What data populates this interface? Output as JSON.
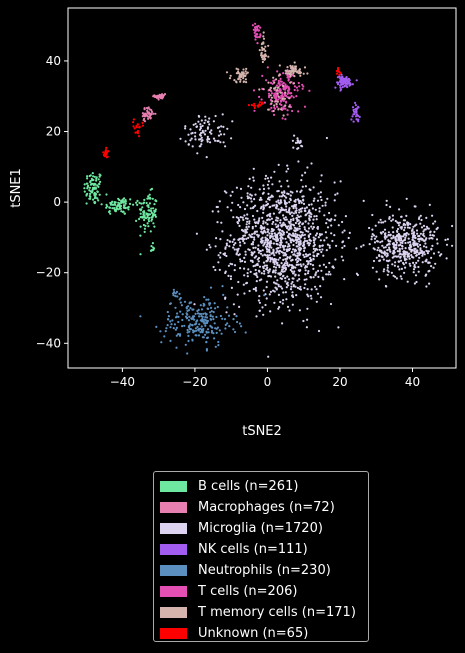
{
  "chart_data": {
    "type": "scatter",
    "title": "",
    "xlabel": "tSNE2",
    "ylabel": "tSNE1",
    "xlim": [
      -55,
      52
    ],
    "ylim": [
      -47,
      55
    ],
    "xticks": [
      -40,
      -20,
      0,
      20,
      40
    ],
    "yticks": [
      -40,
      -20,
      0,
      20,
      40
    ],
    "background": "#000000",
    "grid": false,
    "legend_position": "below",
    "series": [
      {
        "name": "B cells (n=261)",
        "color": "#6ee8a0",
        "count": 261,
        "clusters": [
          {
            "cx": -48,
            "cy": 4,
            "sx": 1.3,
            "sy": 2.5,
            "f": 0.3
          },
          {
            "cx": -41,
            "cy": -1,
            "sx": 2.2,
            "sy": 1.3,
            "f": 0.3
          },
          {
            "cx": -33,
            "cy": -3,
            "sx": 1.3,
            "sy": 2.8,
            "f": 0.37
          },
          {
            "cx": -32,
            "cy": -13,
            "sx": 0.3,
            "sy": 0.6,
            "f": 0.03
          }
        ]
      },
      {
        "name": "Macrophages (n=72)",
        "color": "#e77fb0",
        "count": 72,
        "clusters": [
          {
            "cx": -29.5,
            "cy": 30,
            "sx": 0.8,
            "sy": 0.6,
            "f": 0.45
          },
          {
            "cx": -33,
            "cy": 25,
            "sx": 1.0,
            "sy": 0.9,
            "f": 0.55
          }
        ]
      },
      {
        "name": "Microglia (n=1720)",
        "color": "#dcd3f0",
        "count": 1720,
        "clusters": [
          {
            "cx": 4,
            "cy": -11,
            "sx": 7.5,
            "sy": 8.5,
            "f": 0.68
          },
          {
            "cx": 38,
            "cy": -12,
            "sx": 4.5,
            "sy": 4.5,
            "f": 0.26
          },
          {
            "cx": -17,
            "cy": 20,
            "sx": 3.0,
            "sy": 2.5,
            "f": 0.05
          },
          {
            "cx": 8.5,
            "cy": 17,
            "sx": 0.9,
            "sy": 1.0,
            "f": 0.01
          }
        ]
      },
      {
        "name": "NK cells (n=111)",
        "color": "#a35cf0",
        "count": 111,
        "clusters": [
          {
            "cx": 21,
            "cy": 34,
            "sx": 1.3,
            "sy": 0.9,
            "f": 0.75
          },
          {
            "cx": 24.5,
            "cy": 25.5,
            "sx": 0.5,
            "sy": 1.2,
            "f": 0.25
          }
        ]
      },
      {
        "name": "Neutrophils (n=230)",
        "color": "#5b8fbf",
        "count": 230,
        "clusters": [
          {
            "cx": -25,
            "cy": -26,
            "sx": 0.7,
            "sy": 0.6,
            "f": 0.05
          },
          {
            "cx": -19,
            "cy": -34,
            "sx": 5.0,
            "sy": 3.5,
            "f": 0.95
          }
        ]
      },
      {
        "name": "T cells (n=206)",
        "color": "#e44fb4",
        "count": 206,
        "clusters": [
          {
            "cx": 4,
            "cy": 31,
            "sx": 2.5,
            "sy": 3.0,
            "f": 0.85
          },
          {
            "cx": -3,
            "cy": 48,
            "sx": 0.5,
            "sy": 1.2,
            "f": 0.15
          }
        ]
      },
      {
        "name": "T memory cells (n=171)",
        "color": "#d5b4ae",
        "count": 171,
        "clusters": [
          {
            "cx": -7,
            "cy": 36,
            "sx": 1.5,
            "sy": 1.0,
            "f": 0.25
          },
          {
            "cx": 7,
            "cy": 37,
            "sx": 1.8,
            "sy": 1.0,
            "f": 0.3
          },
          {
            "cx": -1,
            "cy": 43,
            "sx": 0.5,
            "sy": 2.5,
            "f": 0.2
          },
          {
            "cx": 3,
            "cy": 31,
            "sx": 2.5,
            "sy": 3.0,
            "f": 0.25
          }
        ]
      },
      {
        "name": "Unknown (n=65)",
        "color": "#ff0000",
        "count": 65,
        "clusters": [
          {
            "cx": -44.5,
            "cy": 13.5,
            "sx": 0.4,
            "sy": 1.0,
            "f": 0.3
          },
          {
            "cx": -36,
            "cy": 21.5,
            "sx": 0.7,
            "sy": 0.9,
            "f": 0.3
          },
          {
            "cx": -2.5,
            "cy": 27.5,
            "sx": 1.2,
            "sy": 0.3,
            "f": 0.25
          },
          {
            "cx": 19.5,
            "cy": 37,
            "sx": 0.3,
            "sy": 0.5,
            "f": 0.15
          }
        ]
      }
    ]
  }
}
